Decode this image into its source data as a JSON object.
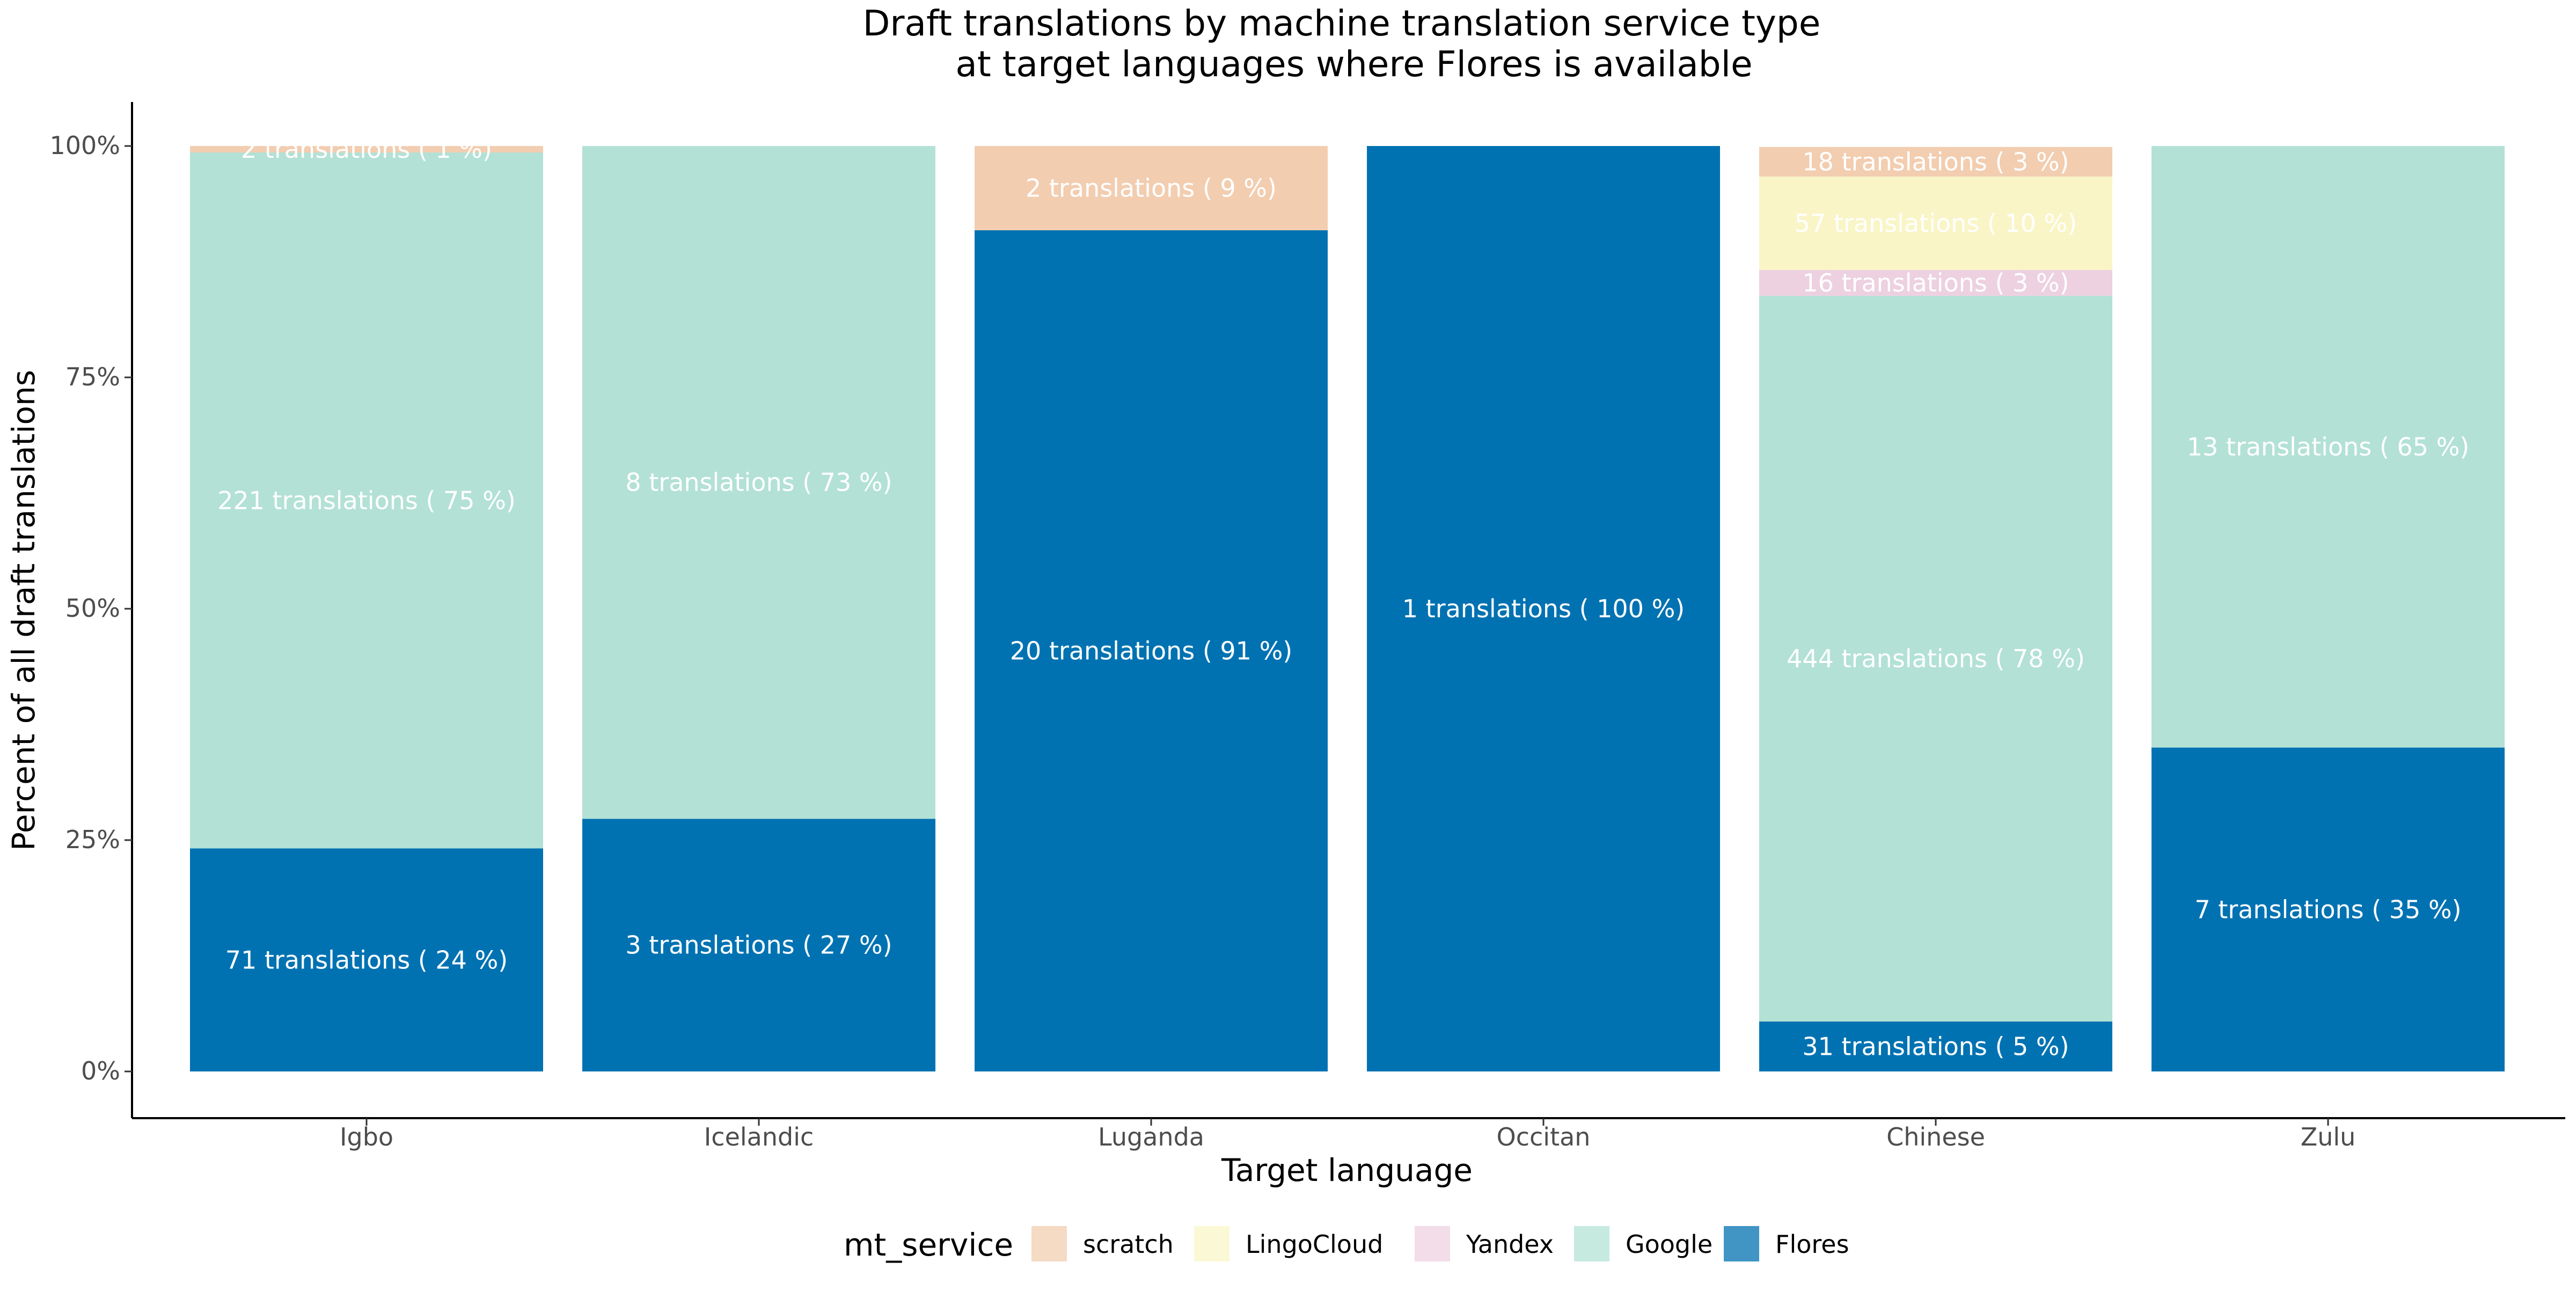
{
  "chart_data": {
    "type": "bar",
    "stacked": true,
    "normalized": true,
    "title": "Draft translations by machine translation service type\nat target languages where Flores is available",
    "xlabel": "Target language",
    "ylabel": "Percent of all draft translations",
    "ylim": [
      0,
      100
    ],
    "y_ticks": [
      "0%",
      "25%",
      "50%",
      "75%",
      "100%"
    ],
    "y_tick_values": [
      0,
      25,
      50,
      75,
      100
    ],
    "grid": false,
    "legend_position": "bottom",
    "legend_title": "mt_service",
    "categories": [
      "Igbo",
      "Icelandic",
      "Luganda",
      "Occitan",
      "Chinese",
      "Zulu"
    ],
    "series": [
      {
        "name": "Flores",
        "color": "#0072B2",
        "values": [
          71,
          3,
          20,
          1,
          31,
          7
        ],
        "percent_values": [
          24.1,
          27.3,
          90.9,
          100,
          5.4,
          35
        ],
        "labels": [
          "71  translations ( 24 %)",
          "3  translations ( 27 %)",
          "20  translations ( 91 %)",
          "1  translations ( 100 %)",
          "31  translations ( 5 %)",
          "7  translations ( 35 %)"
        ]
      },
      {
        "name": "Google",
        "color": "#B3E1D5",
        "values": [
          221,
          8,
          0,
          0,
          444,
          13
        ],
        "percent_values": [
          75.2,
          72.7,
          0,
          0,
          78.4,
          65
        ],
        "labels": [
          "221  translations ( 75 %)",
          "8  translations ( 73 %)",
          "",
          "",
          "444  translations ( 78 %)",
          "13  translations ( 65 %)"
        ]
      },
      {
        "name": "Yandex",
        "color": "#EDD1E0",
        "values": [
          0,
          0,
          0,
          0,
          16,
          0
        ],
        "percent_values": [
          0,
          0,
          0,
          0,
          2.8,
          0
        ],
        "labels": [
          "",
          "",
          "",
          "",
          "16  translations ( 3 %)",
          ""
        ]
      },
      {
        "name": "LingoCloud",
        "color": "#F9F5C7",
        "values": [
          0,
          0,
          0,
          0,
          57,
          0
        ],
        "percent_values": [
          0,
          0,
          0,
          0,
          10.1,
          0
        ],
        "labels": [
          "",
          "",
          "",
          "",
          "57  translations ( 10 %)",
          ""
        ]
      },
      {
        "name": "scratch",
        "color": "#F2CDB0",
        "values": [
          2,
          0,
          2,
          0,
          18,
          0
        ],
        "percent_values": [
          0.7,
          0,
          9.1,
          0,
          3.2,
          0
        ],
        "labels": [
          "2  translations ( 1 %)",
          "",
          "2  translations ( 9 %)",
          "",
          "18  translations ( 3 %)",
          ""
        ]
      }
    ],
    "legend_order": [
      "scratch",
      "LingoCloud",
      "Yandex",
      "Google",
      "Flores"
    ]
  }
}
